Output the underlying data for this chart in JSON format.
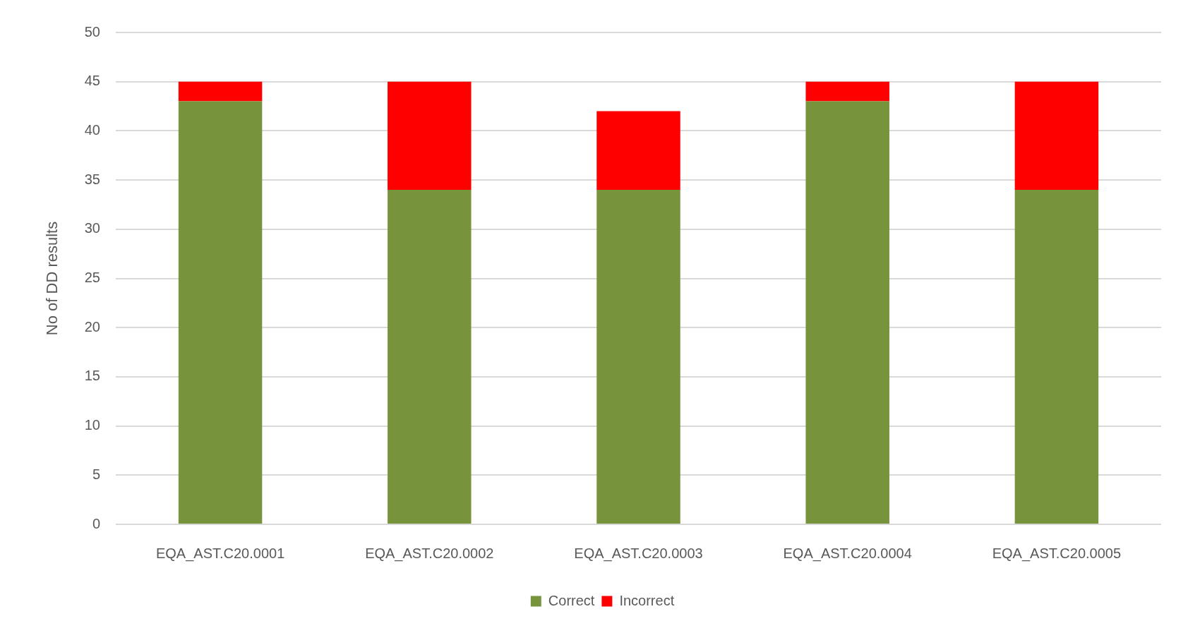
{
  "chart_data": {
    "type": "bar",
    "stacked": true,
    "categories": [
      "EQA_AST.C20.0001",
      "EQA_AST.C20.0002",
      "EQA_AST.C20.0003",
      "EQA_AST.C20.0004",
      "EQA_AST.C20.0005"
    ],
    "series": [
      {
        "name": "Correct",
        "color": "#77933c",
        "values": [
          43,
          34,
          34,
          43,
          34
        ]
      },
      {
        "name": "Incorrect",
        "color": "#ff0000",
        "values": [
          2,
          11,
          8,
          2,
          11
        ]
      }
    ],
    "ylabel": "No of DD results",
    "ylim": [
      0,
      50
    ],
    "yticks": [
      0,
      5,
      10,
      15,
      20,
      25,
      30,
      35,
      40,
      45,
      50
    ],
    "grid": "y",
    "legend": "bottom"
  }
}
